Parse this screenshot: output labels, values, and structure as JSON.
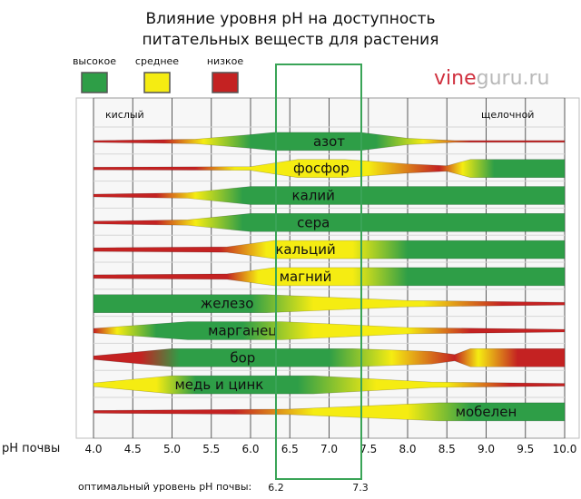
{
  "chart_data": {
    "type": "nutrient-availability-band",
    "title_line1": "Влияние уровня pH на доступность",
    "title_line2": "питательных веществ для растения",
    "legend": [
      {
        "label": "высокое",
        "color": "#2e9e47"
      },
      {
        "label": "среднее",
        "color": "#f5ec12"
      },
      {
        "label": "низкое",
        "color": "#c42222"
      }
    ],
    "brand": {
      "part1": "vine",
      "part2": "guru.ru"
    },
    "side_labels": {
      "acid": "кислый",
      "alkaline": "щелочной"
    },
    "xlabel": "pH почвы",
    "x_ticks": [
      4.0,
      4.5,
      5.0,
      5.5,
      6.0,
      6.5,
      7.0,
      7.5,
      8.0,
      8.5,
      9.0,
      9.5,
      10.0
    ],
    "x_tick_labels": [
      "4.0",
      "4.5",
      "5.0",
      "5.5",
      "6.0",
      "6.5",
      "7.0",
      "7.5",
      "8.0",
      "8.5",
      "9.0",
      "9.5",
      "10.0"
    ],
    "xlim": [
      4.0,
      10.0
    ],
    "optimal": {
      "label": "оптимальный уровень pH почвы:",
      "min": 6.2,
      "max": 7.3,
      "min_label": "6.2",
      "max_label": "7.3"
    },
    "nutrients": [
      {
        "name": "азот",
        "label_ph": 7.0,
        "width": [
          [
            4.0,
            0.1
          ],
          [
            5.3,
            0.25
          ],
          [
            6.0,
            0.75
          ],
          [
            6.3,
            1
          ],
          [
            7.4,
            1
          ],
          [
            8.0,
            0.35
          ],
          [
            8.6,
            0.1
          ],
          [
            10.0,
            0.1
          ]
        ],
        "color": [
          [
            4.0,
            "#c42222"
          ],
          [
            4.9,
            "#c42222"
          ],
          [
            5.4,
            "#f5ec12"
          ],
          [
            6.0,
            "#2e9e47"
          ],
          [
            7.6,
            "#2e9e47"
          ],
          [
            8.2,
            "#f5ec12"
          ],
          [
            8.8,
            "#c42222"
          ],
          [
            10.0,
            "#c42222"
          ]
        ]
      },
      {
        "name": "фосфор",
        "label_ph": 6.9,
        "width": [
          [
            4.0,
            0.15
          ],
          [
            6.0,
            0.2
          ],
          [
            6.6,
            1
          ],
          [
            7.2,
            1
          ],
          [
            8.0,
            0.5
          ],
          [
            8.5,
            0.3
          ],
          [
            8.8,
            1
          ],
          [
            10.0,
            1
          ]
        ],
        "color": [
          [
            4.0,
            "#c42222"
          ],
          [
            5.3,
            "#c42222"
          ],
          [
            5.8,
            "#f5ec12"
          ],
          [
            7.5,
            "#f5ec12"
          ],
          [
            8.4,
            "#c42222"
          ],
          [
            8.7,
            "#f5ec12"
          ],
          [
            9.1,
            "#2e9e47"
          ],
          [
            10.0,
            "#2e9e47"
          ]
        ]
      },
      {
        "name": "калий",
        "label_ph": 6.8,
        "width": [
          [
            4.0,
            0.15
          ],
          [
            5.2,
            0.3
          ],
          [
            6.0,
            1
          ],
          [
            10.0,
            1
          ]
        ],
        "color": [
          [
            4.0,
            "#c42222"
          ],
          [
            4.8,
            "#c42222"
          ],
          [
            5.3,
            "#f5ec12"
          ],
          [
            5.9,
            "#2e9e47"
          ],
          [
            10.0,
            "#2e9e47"
          ]
        ]
      },
      {
        "name": "сера",
        "label_ph": 6.8,
        "width": [
          [
            4.0,
            0.15
          ],
          [
            5.2,
            0.3
          ],
          [
            6.0,
            1
          ],
          [
            10.0,
            1
          ]
        ],
        "color": [
          [
            4.0,
            "#c42222"
          ],
          [
            4.8,
            "#c42222"
          ],
          [
            5.3,
            "#f5ec12"
          ],
          [
            5.9,
            "#2e9e47"
          ],
          [
            10.0,
            "#2e9e47"
          ]
        ]
      },
      {
        "name": "кальций",
        "label_ph": 6.7,
        "width": [
          [
            4.0,
            0.2
          ],
          [
            5.7,
            0.3
          ],
          [
            6.3,
            1
          ],
          [
            10.0,
            1
          ]
        ],
        "color": [
          [
            4.0,
            "#c42222"
          ],
          [
            5.6,
            "#c42222"
          ],
          [
            6.2,
            "#f5ec12"
          ],
          [
            7.3,
            "#f5ec12"
          ],
          [
            8.0,
            "#2e9e47"
          ],
          [
            10.0,
            "#2e9e47"
          ]
        ]
      },
      {
        "name": "магний",
        "label_ph": 6.7,
        "width": [
          [
            4.0,
            0.2
          ],
          [
            5.7,
            0.3
          ],
          [
            6.3,
            1
          ],
          [
            10.0,
            1
          ]
        ],
        "color": [
          [
            4.0,
            "#c42222"
          ],
          [
            5.7,
            "#c42222"
          ],
          [
            6.1,
            "#f5ec12"
          ],
          [
            7.3,
            "#f5ec12"
          ],
          [
            8.0,
            "#2e9e47"
          ],
          [
            10.0,
            "#2e9e47"
          ]
        ]
      },
      {
        "name": "железо",
        "label_ph": 5.7,
        "width": [
          [
            4.0,
            1
          ],
          [
            6.2,
            1
          ],
          [
            8.0,
            0.35
          ],
          [
            10.0,
            0.15
          ]
        ],
        "color": [
          [
            4.0,
            "#2e9e47"
          ],
          [
            6.0,
            "#2e9e47"
          ],
          [
            6.8,
            "#f5ec12"
          ],
          [
            8.2,
            "#f5ec12"
          ],
          [
            9.2,
            "#c42222"
          ],
          [
            10.0,
            "#c42222"
          ]
        ]
      },
      {
        "name": "марганец",
        "label_ph": 5.9,
        "width": [
          [
            4.0,
            0.25
          ],
          [
            5.2,
            1
          ],
          [
            6.4,
            1
          ],
          [
            8.0,
            0.35
          ],
          [
            10.0,
            0.15
          ]
        ],
        "color": [
          [
            4.0,
            "#c42222"
          ],
          [
            4.3,
            "#f5ec12"
          ],
          [
            4.8,
            "#2e9e47"
          ],
          [
            5.9,
            "#2e9e47"
          ],
          [
            6.8,
            "#f5ec12"
          ],
          [
            8.0,
            "#f5ec12"
          ],
          [
            8.8,
            "#c42222"
          ],
          [
            10.0,
            "#c42222"
          ]
        ]
      },
      {
        "name": "бор",
        "label_ph": 5.9,
        "width": [
          [
            4.0,
            0.2
          ],
          [
            5.0,
            1
          ],
          [
            7.3,
            1
          ],
          [
            8.3,
            0.7
          ],
          [
            8.6,
            0.35
          ],
          [
            8.8,
            1
          ],
          [
            10.0,
            1
          ]
        ],
        "color": [
          [
            4.0,
            "#c42222"
          ],
          [
            4.6,
            "#c42222"
          ],
          [
            5.1,
            "#2e9e47"
          ],
          [
            7.0,
            "#2e9e47"
          ],
          [
            7.8,
            "#f5ec12"
          ],
          [
            8.6,
            "#c42222"
          ],
          [
            8.9,
            "#f5ec12"
          ],
          [
            9.4,
            "#c42222"
          ],
          [
            10.0,
            "#c42222"
          ]
        ]
      },
      {
        "name": "медь и цинк",
        "label_ph": 5.6,
        "width": [
          [
            4.0,
            0.2
          ],
          [
            5.0,
            1
          ],
          [
            6.8,
            1
          ],
          [
            8.3,
            0.3
          ],
          [
            10.0,
            0.15
          ]
        ],
        "color": [
          [
            4.0,
            "#f5ec12"
          ],
          [
            4.8,
            "#f5ec12"
          ],
          [
            5.3,
            "#2e9e47"
          ],
          [
            6.6,
            "#2e9e47"
          ],
          [
            7.6,
            "#f5ec12"
          ],
          [
            8.5,
            "#f5ec12"
          ],
          [
            9.3,
            "#c42222"
          ],
          [
            10.0,
            "#c42222"
          ]
        ]
      },
      {
        "name": "мобелен",
        "label_ph": 9.0,
        "width": [
          [
            4.0,
            0.15
          ],
          [
            6.5,
            0.3
          ],
          [
            8.4,
            1
          ],
          [
            10.0,
            1
          ]
        ],
        "color": [
          [
            4.0,
            "#c42222"
          ],
          [
            5.8,
            "#c42222"
          ],
          [
            6.8,
            "#f5ec12"
          ],
          [
            8.0,
            "#f5ec12"
          ],
          [
            8.8,
            "#2e9e47"
          ],
          [
            10.0,
            "#2e9e47"
          ]
        ]
      }
    ]
  }
}
